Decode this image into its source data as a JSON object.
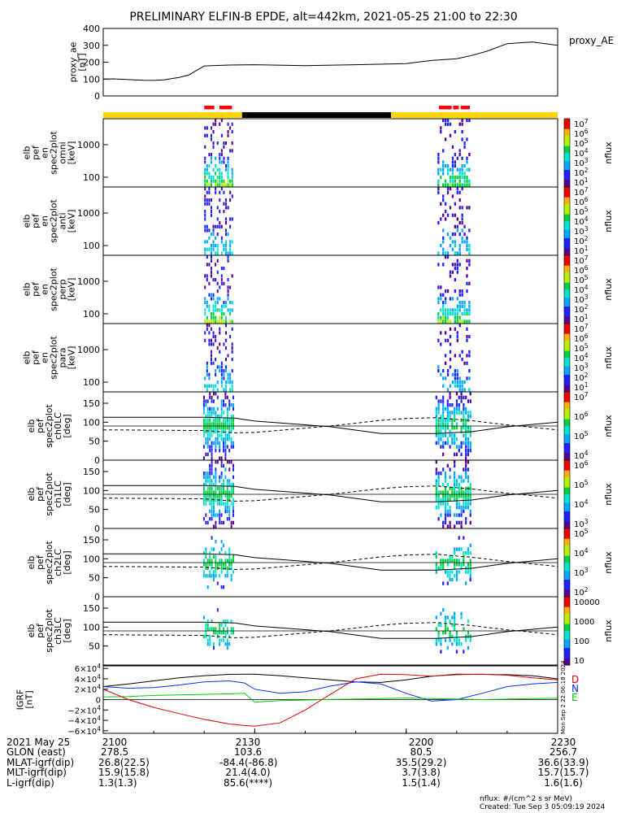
{
  "title": "PRELIMINARY ELFIN-B EPDE, alt=442km, 2021-05-25 21:00 to 22:30",
  "ae_panel": {
    "ylabel": [
      "proxy_ae",
      "[nT]"
    ],
    "yticks": [
      "400",
      "300",
      "200",
      "100",
      "0"
    ],
    "legend": "proxy_AE",
    "y_range": [
      0,
      400
    ],
    "t_min": [
      0,
      2,
      5,
      8,
      10,
      12,
      15,
      17,
      20,
      25,
      30,
      40,
      50,
      60,
      65,
      70,
      73,
      76,
      80,
      85,
      90
    ],
    "values": [
      100,
      101,
      97,
      93,
      92,
      95,
      110,
      125,
      178,
      183,
      185,
      180,
      185,
      192,
      210,
      220,
      240,
      265,
      310,
      320,
      300
    ]
  },
  "science_bar": {
    "colors": {
      "yellow": "#ffd500",
      "black": "#000000",
      "red": "#ff0000"
    },
    "segments_min": [
      {
        "from": 0,
        "to": 27.5,
        "color": "yellow"
      },
      {
        "from": 27.5,
        "to": 57.0,
        "color": "black"
      },
      {
        "from": 57.0,
        "to": 90,
        "color": "yellow"
      }
    ],
    "red_marks_min": [
      [
        20.0,
        22.0
      ],
      [
        23.0,
        25.5
      ],
      [
        66.5,
        69.0
      ],
      [
        69.3,
        70.4
      ],
      [
        70.8,
        72.6
      ]
    ]
  },
  "spec_panels": [
    {
      "ylabel": [
        "elb",
        "pef",
        "en",
        "spec2plot",
        "omni",
        "[keV]"
      ],
      "yticks": [
        "1000",
        "100"
      ],
      "cb_ticks": [
        "10^7",
        "10^6",
        "10^5",
        "10^4",
        "10^3",
        "10^2",
        "10^1"
      ]
    },
    {
      "ylabel": [
        "elb",
        "pef",
        "en",
        "spec2plot",
        "anti",
        "[keV]"
      ],
      "yticks": [
        "1000",
        "100"
      ],
      "cb_ticks": [
        "10^7",
        "10^6",
        "10^5",
        "10^4",
        "10^3",
        "10^2",
        "10^1"
      ]
    },
    {
      "ylabel": [
        "elb",
        "pef",
        "en",
        "spec2plot",
        "perp",
        "[keV]"
      ],
      "yticks": [
        "1000",
        "100"
      ],
      "cb_ticks": [
        "10^7",
        "10^6",
        "10^5",
        "10^4",
        "10^3",
        "10^2",
        "10^1"
      ]
    },
    {
      "ylabel": [
        "elb",
        "pef",
        "en",
        "spec2plot",
        "para",
        "[keV]"
      ],
      "yticks": [
        "1000",
        "100"
      ],
      "cb_ticks": [
        "10^7",
        "10^6",
        "10^5",
        "10^4",
        "10^3",
        "10^2",
        "10^1"
      ]
    }
  ],
  "pa_panels": [
    {
      "ylabel": [
        "elb",
        "pef",
        "spec2plot",
        "ch0LC",
        "[deg]"
      ],
      "yticks": [
        "150",
        "100",
        "50",
        "0"
      ],
      "cb_ticks": [
        "10^7",
        "10^6",
        "10^5",
        "10^4"
      ]
    },
    {
      "ylabel": [
        "elb",
        "pef",
        "spec2plot",
        "ch1LC",
        "[deg]"
      ],
      "yticks": [
        "150",
        "100",
        "50",
        "0"
      ],
      "cb_ticks": [
        "10^6",
        "10^5",
        "10^4",
        "10^3"
      ]
    },
    {
      "ylabel": [
        "elb",
        "pef",
        "spec2plot",
        "ch2LC",
        "[deg]"
      ],
      "yticks": [
        "150",
        "100",
        "50",
        "0"
      ],
      "cb_ticks": [
        "10^5",
        "10^4",
        "10^3",
        "10^2"
      ]
    },
    {
      "ylabel": [
        "elb",
        "pef",
        "spec2plot",
        "ch3LC",
        "[deg]"
      ],
      "yticks": [
        "150",
        "100",
        "50"
      ],
      "cb_ticks": [
        "10000",
        "1000",
        "100",
        "10"
      ]
    }
  ],
  "colorbar_unit": "nflux",
  "igrf_panel": {
    "ylabel": [
      "IGRF",
      "[nT]"
    ],
    "yticks": [
      "6×10^4",
      "4×10^4",
      "2×10^4",
      "0",
      "−2×10^4",
      "−4×10^4",
      "−6×10^4"
    ],
    "legend": [
      "D",
      "N",
      "E"
    ],
    "colors": {
      "D": "#e00000",
      "N": "#0030ff",
      "E": "#00cc00",
      "total": "#000000"
    },
    "series": {
      "t_min": [
        0,
        5,
        10,
        15,
        20,
        25,
        28,
        30,
        35,
        40,
        45,
        50,
        55,
        60,
        65,
        70,
        75,
        80,
        85,
        90
      ],
      "total": [
        25000,
        30000,
        36000,
        42000,
        46000,
        48500,
        49000,
        48800,
        46000,
        42000,
        38000,
        34000,
        33000,
        38000,
        45000,
        49000,
        48500,
        48000,
        46000,
        40000
      ],
      "N": [
        25000,
        22000,
        23000,
        28000,
        34000,
        36000,
        32000,
        20000,
        12000,
        15000,
        26000,
        34000,
        30000,
        12000,
        -3000,
        0,
        12000,
        25000,
        30000,
        33000
      ],
      "E": [
        5000,
        6000,
        8000,
        9000,
        10000,
        11000,
        12000,
        -5000,
        -2000,
        -1000,
        500,
        1000,
        2000,
        3000,
        2000,
        1000,
        0,
        1000,
        2000,
        2500
      ],
      "D": [
        20000,
        0,
        -15000,
        -27000,
        -38000,
        -47000,
        -50000,
        -51000,
        -45000,
        -20000,
        10000,
        40000,
        49000,
        48000,
        45000,
        48000,
        49000,
        47000,
        42000,
        38000
      ]
    }
  },
  "created_vertical": "Mon Sep  2 22:06:18 2024",
  "time_axis": {
    "labels": [
      "2100",
      "2130",
      "2200",
      "2230"
    ],
    "rows": [
      {
        "label": "2021 May 25",
        "values": [
          "2100",
          "2130",
          "2200",
          "2230"
        ]
      },
      {
        "label": "GLON (east)",
        "values": [
          "278.5",
          "103.6",
          "80.5",
          "256.7"
        ]
      },
      {
        "label": "MLAT-igrf(dip)",
        "values": [
          "26.8(22.5)",
          "-84.4(-86.8)",
          "35.5(29.2)",
          "36.6(33.9)"
        ]
      },
      {
        "label": "MLT-igrf(dip)",
        "values": [
          "15.9(15.8)",
          "21.4(4.0)",
          "3.7(3.8)",
          "15.7(15.7)"
        ]
      },
      {
        "label": "L-igrf(dip)",
        "values": [
          "1.3(1.3)",
          "85.6(****)",
          "1.5(1.4)",
          "1.6(1.6)"
        ]
      }
    ]
  },
  "footnote_units": "nflux: #/(cm^2 s sr MeV)",
  "footnote_created": "Created: Tue Sep  3 05:09:19 2024"
}
